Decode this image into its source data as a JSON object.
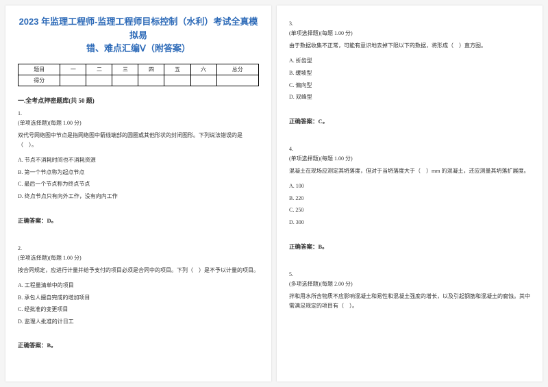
{
  "header": {
    "title_line1": "2023 年监理工程师-监理工程师目标控制（水利）考试全真模拟易",
    "title_line2": "错、难点汇编Ⅴ（附答案）"
  },
  "score_table": {
    "row1": [
      "题目",
      "一",
      "二",
      "三",
      "四",
      "五",
      "六",
      "总分"
    ],
    "row2": [
      "得分",
      "",
      "",
      "",
      "",
      "",
      "",
      ""
    ]
  },
  "section1_title": "一.全考点押密题库(共 50 题)",
  "q1": {
    "num": "1.",
    "meta": "(单项选择题)(每题 1.00 分)",
    "text": "双代号网络图中节点是指网络图中箭线端部的圆圈或其他形状的封闭图形。下列说法错误的是（　）。",
    "opts": [
      "A. 节点不消耗时间也不消耗资源",
      "B. 第一个节点称为起点节点",
      "C. 最后一个节点称为终点节点",
      "D. 终点节点只有向外工作，没有向内工作"
    ],
    "answer": "正确答案：D。"
  },
  "q2": {
    "num": "2.",
    "meta": "(单项选择题)(每题 1.00 分)",
    "text": "按合同规定，应进行计量并给予支付的项目必须是合同中的项目。下列（　）是不予以计量的项目。",
    "opts": [
      "A. 工程量清单中的项目",
      "B. 承包人擅自完成的增加项目",
      "C. 经批准的变更项目",
      "D. 监理人批准的计日工"
    ],
    "answer": "正确答案：B。"
  },
  "q3": {
    "num": "3.",
    "meta": "(单项选择题)(每题 1.00 分)",
    "text": "由于数据收集不正常，可能有意识地去掉下限以下的数据，将形成（　）直方图。",
    "opts": [
      "A. 折齿型",
      "B. 缓坡型",
      "C. 偏向型",
      "D. 双峰型"
    ],
    "answer": "正确答案：C。"
  },
  "q4": {
    "num": "4.",
    "meta": "(单项选择题)(每题 1.00 分)",
    "text": "混凝土在现场应测定其坍落度，但对于当坍落度大于（　）mm 的混凝土，还应测量其坍落扩展度。",
    "opts": [
      "A. 100",
      "B. 220",
      "C. 250",
      "D. 300"
    ],
    "answer": "正确答案：B。"
  },
  "q5": {
    "num": "5.",
    "meta": "(多项选择题)(每题 2.00 分)",
    "text": "拌和用水所含物质不应影响混凝土和易性和混凝土强度的增长，以及引起钢筋和混凝土的腐蚀。其中需满足规定的项目有（　）。"
  }
}
